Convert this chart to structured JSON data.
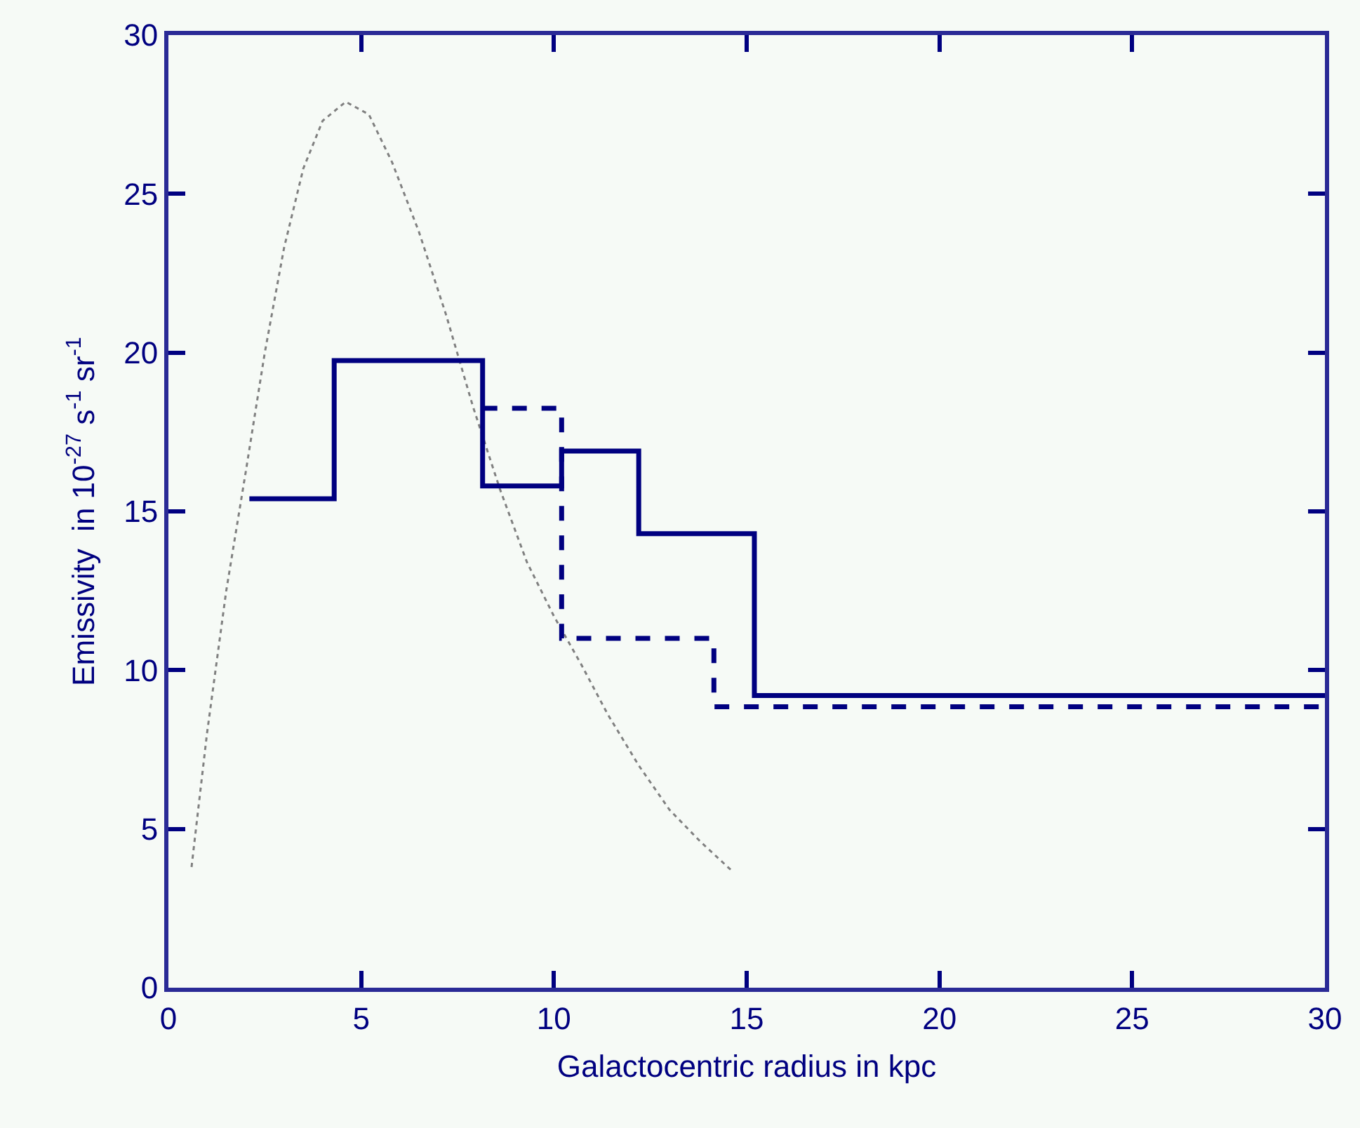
{
  "chart_data": {
    "type": "step",
    "xlabel": "Galactocentric radius in kpc",
    "ylabel": "Emissivity  in 10$^{-27}$ s$^{-1}$ sr$^{-1}$",
    "xlim": [
      0,
      30
    ],
    "xticks": [
      0,
      5,
      10,
      15,
      20,
      25,
      30
    ],
    "ylim": [
      0,
      30
    ],
    "yticks": [
      0,
      5,
      10,
      15,
      20,
      25,
      30
    ],
    "grid": false,
    "legend": false,
    "series": [
      {
        "type": "line",
        "line_style": "dotted",
        "color": "#808080",
        "x": [
          0.6,
          1.0,
          1.5,
          2.0,
          2.5,
          3.0,
          3.5,
          4.0,
          4.6,
          5.2,
          5.8,
          6.5,
          7.2,
          7.9,
          8.6,
          9.3,
          10.0,
          10.7,
          11.4,
          12.2,
          13.0,
          13.8,
          14.6
        ],
        "values": [
          3.8,
          8.0,
          12.5,
          16.2,
          20.0,
          23.3,
          25.8,
          27.3,
          27.9,
          27.5,
          26.0,
          23.8,
          21.2,
          18.3,
          15.7,
          13.4,
          11.7,
          10.2,
          8.6,
          7.0,
          5.6,
          4.6,
          3.7
        ]
      },
      {
        "line_style": "solid",
        "color": "#000080",
        "x": [
          2.1,
          4.3,
          8.15,
          10.2,
          12.2,
          15.2,
          30
        ],
        "values": [
          15.4,
          19.75,
          15.8,
          16.9,
          14.3,
          9.2,
          9.2
        ]
      },
      {
        "line_style": "dashed",
        "color": "#000080",
        "x": [
          8.15,
          10.2,
          14.15,
          30
        ],
        "values": [
          18.25,
          11.0,
          8.85,
          8.85
        ]
      }
    ]
  }
}
